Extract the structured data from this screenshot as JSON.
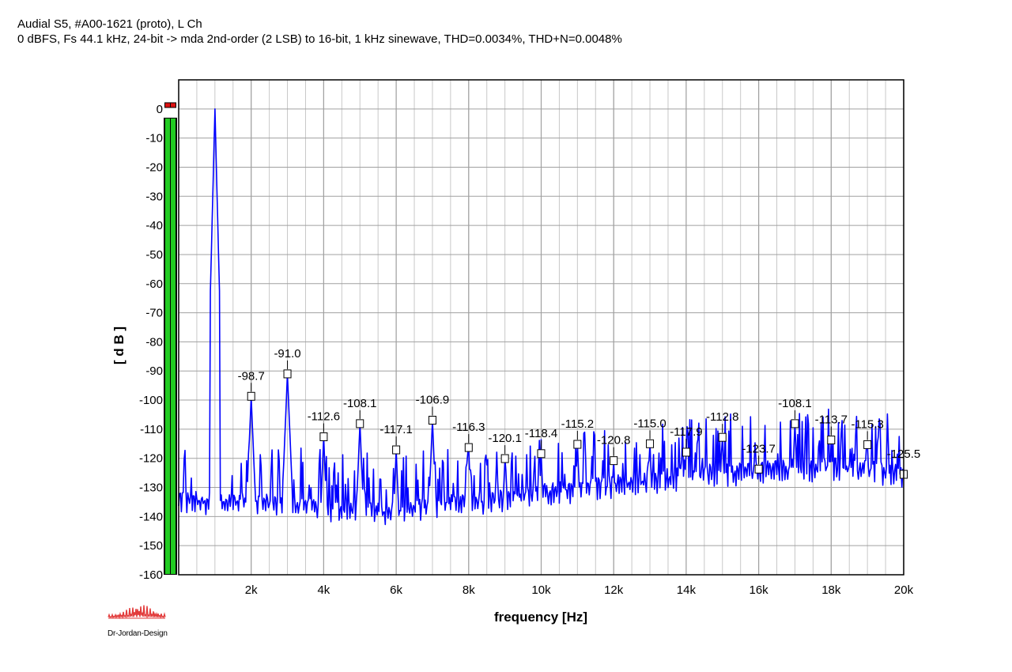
{
  "header": {
    "line1": "Audial S5, #A00-1621 (proto), L Ch",
    "line2": "0 dBFS, Fs 44.1 kHz, 24-bit -> mda 2nd-order (2 LSB) to 16-bit, 1 kHz sinewave, THD=0.0034%, THD+N=0.0048%"
  },
  "logo": {
    "text": "Dr-Jordan-Design",
    "color": "#e23b3b"
  },
  "chart_data": {
    "type": "line",
    "xlabel": "frequency [Hz]",
    "ylabel": "[ d B ]",
    "xlim": [
      0,
      20000
    ],
    "ylim": [
      -160,
      10
    ],
    "grid": true,
    "x_ticks": [
      {
        "value": 2000,
        "label": "2k"
      },
      {
        "value": 4000,
        "label": "4k"
      },
      {
        "value": 6000,
        "label": "6k"
      },
      {
        "value": 8000,
        "label": "8k"
      },
      {
        "value": 10000,
        "label": "10k"
      },
      {
        "value": 12000,
        "label": "12k"
      },
      {
        "value": 14000,
        "label": "14k"
      },
      {
        "value": 16000,
        "label": "16k"
      },
      {
        "value": 18000,
        "label": "18k"
      },
      {
        "value": 20000,
        "label": "20k"
      }
    ],
    "y_ticks": [
      {
        "value": 0,
        "label": "0"
      },
      {
        "value": -10,
        "label": "-10"
      },
      {
        "value": -20,
        "label": "-20"
      },
      {
        "value": -30,
        "label": "-30"
      },
      {
        "value": -40,
        "label": "-40"
      },
      {
        "value": -50,
        "label": "-50"
      },
      {
        "value": -60,
        "label": "-60"
      },
      {
        "value": -70,
        "label": "-70"
      },
      {
        "value": -80,
        "label": "-80"
      },
      {
        "value": -90,
        "label": "-90"
      },
      {
        "value": -100,
        "label": "-100"
      },
      {
        "value": -110,
        "label": "-110"
      },
      {
        "value": -120,
        "label": "-120"
      },
      {
        "value": -130,
        "label": "-130"
      },
      {
        "value": -140,
        "label": "-140"
      },
      {
        "value": -150,
        "label": "-150"
      },
      {
        "value": -160,
        "label": "-160"
      }
    ],
    "series": [
      {
        "color": "#0000ff",
        "fundamental": {
          "x": 1000,
          "y": 0
        },
        "harmonics": [
          {
            "x": 2000,
            "y": -98.7,
            "label": "-98.7"
          },
          {
            "x": 3000,
            "y": -91.0,
            "label": "-91.0"
          },
          {
            "x": 4000,
            "y": -112.6,
            "label": "-112.6"
          },
          {
            "x": 5000,
            "y": -108.1,
            "label": "-108.1"
          },
          {
            "x": 6000,
            "y": -117.1,
            "label": "-117.1"
          },
          {
            "x": 7000,
            "y": -106.9,
            "label": "-106.9"
          },
          {
            "x": 8000,
            "y": -116.3,
            "label": "-116.3"
          },
          {
            "x": 9000,
            "y": -120.1,
            "label": "-120.1"
          },
          {
            "x": 10000,
            "y": -118.4,
            "label": "-118.4"
          },
          {
            "x": 11000,
            "y": -115.2,
            "label": "-115.2"
          },
          {
            "x": 12000,
            "y": -120.8,
            "label": "-120.8"
          },
          {
            "x": 13000,
            "y": -115.0,
            "label": "-115.0"
          },
          {
            "x": 14000,
            "y": -117.9,
            "label": "-117.9"
          },
          {
            "x": 15000,
            "y": -112.8,
            "label": "-112.8"
          },
          {
            "x": 16000,
            "y": -123.7,
            "label": "-123.7"
          },
          {
            "x": 17000,
            "y": -108.1,
            "label": "-108.1"
          },
          {
            "x": 18000,
            "y": -113.7,
            "label": "-113.7"
          },
          {
            "x": 19000,
            "y": -115.3,
            "label": "-115.3"
          },
          {
            "x": 20000,
            "y": -125.5,
            "label": "-125.5"
          }
        ],
        "noise_floor": [
          {
            "x": 0,
            "y": -139
          },
          {
            "x": 2000,
            "y": -140
          },
          {
            "x": 4000,
            "y": -142
          },
          {
            "x": 6000,
            "y": -143
          },
          {
            "x": 8000,
            "y": -140
          },
          {
            "x": 10000,
            "y": -137
          },
          {
            "x": 12000,
            "y": -134
          },
          {
            "x": 14000,
            "y": -131
          },
          {
            "x": 16000,
            "y": -129
          },
          {
            "x": 18000,
            "y": -128
          },
          {
            "x": 20000,
            "y": -130
          }
        ]
      }
    ],
    "level_meter": {
      "color": "#22cc22",
      "clip_color": "#dd1111"
    }
  }
}
